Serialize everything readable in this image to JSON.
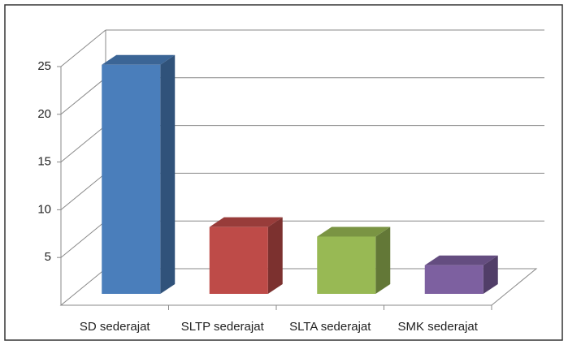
{
  "chart_data": {
    "type": "bar3d",
    "categories": [
      "SD sederajat",
      "SLTP sederajat",
      "SLTA sederajat",
      "SMK sederajat"
    ],
    "values": [
      24,
      7,
      6,
      3
    ],
    "colors": [
      "#4a7ebb",
      "#be4b48",
      "#98b954",
      "#7d60a0"
    ],
    "ylim": [
      0,
      25
    ],
    "yticks": [
      5,
      10,
      15,
      20,
      25
    ],
    "grid": true
  }
}
